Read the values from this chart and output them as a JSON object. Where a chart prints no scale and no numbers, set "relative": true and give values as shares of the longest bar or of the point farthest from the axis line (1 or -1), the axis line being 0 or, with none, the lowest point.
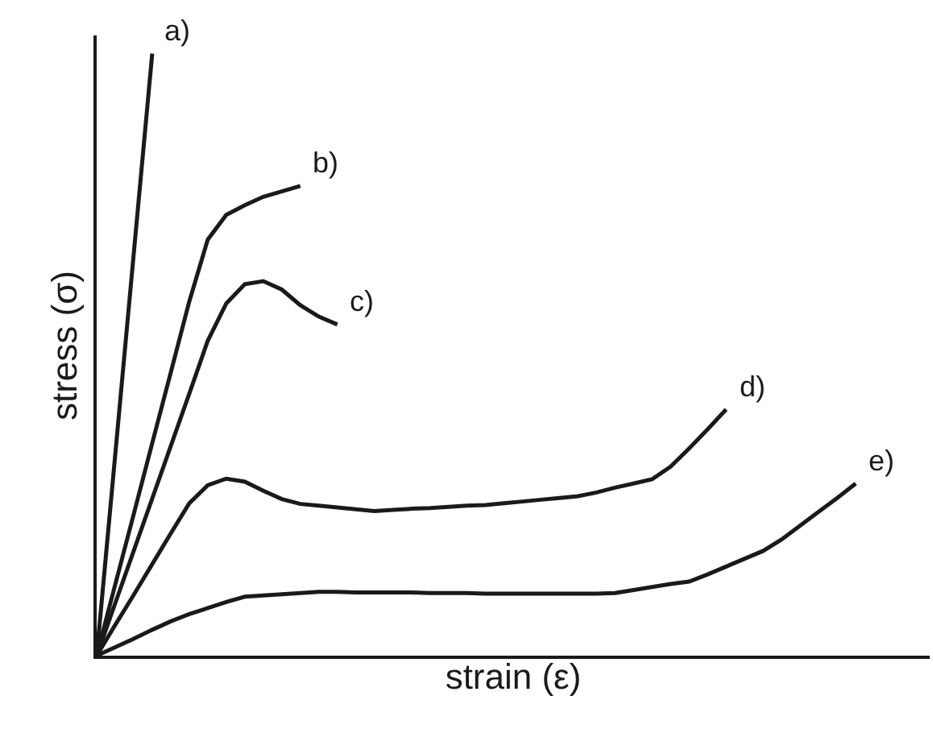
{
  "chart_data": {
    "type": "line",
    "relative": true,
    "xlabel": "strain (ε)",
    "ylabel": "stress (σ)",
    "legend": false,
    "marker": "none",
    "line_style": "solid",
    "tick_labels": false,
    "categories": [
      null,
      null,
      null,
      null,
      null,
      null,
      null,
      null,
      null,
      null,
      null,
      null,
      null,
      null,
      null,
      null,
      null,
      null,
      null,
      null,
      null,
      null,
      null,
      null,
      null,
      null,
      null,
      null,
      null,
      null,
      null,
      null,
      null,
      null,
      null,
      null,
      null,
      null,
      null,
      null,
      null,
      null,
      null,
      null,
      null,
      null
    ],
    "series": [
      {
        "name": "a)",
        "color": "#1a1a1a",
        "values": [
          0,
          0.333,
          0.667,
          1.0,
          null,
          null,
          null,
          null,
          null,
          null,
          null,
          null,
          null,
          null,
          null,
          null,
          null,
          null,
          null,
          null,
          null,
          null,
          null,
          null,
          null,
          null,
          null,
          null,
          null,
          null,
          null,
          null,
          null,
          null,
          null,
          null,
          null,
          null,
          null,
          null,
          null,
          null,
          null,
          null,
          null,
          null
        ]
      },
      {
        "name": "b)",
        "color": "#1a1a1a",
        "values": [
          0,
          0.118,
          0.235,
          0.353,
          0.47,
          0.588,
          0.691,
          0.732,
          0.748,
          0.762,
          0.771,
          0.78,
          null,
          null,
          null,
          null,
          null,
          null,
          null,
          null,
          null,
          null,
          null,
          null,
          null,
          null,
          null,
          null,
          null,
          null,
          null,
          null,
          null,
          null,
          null,
          null,
          null,
          null,
          null,
          null,
          null,
          null,
          null,
          null,
          null,
          null
        ]
      },
      {
        "name": "c)",
        "color": "#1a1a1a",
        "values": [
          0,
          0.087,
          0.174,
          0.261,
          0.348,
          0.435,
          0.523,
          0.585,
          0.617,
          0.622,
          0.608,
          0.582,
          0.563,
          0.55,
          null,
          null,
          null,
          null,
          null,
          null,
          null,
          null,
          null,
          null,
          null,
          null,
          null,
          null,
          null,
          null,
          null,
          null,
          null,
          null,
          null,
          null,
          null,
          null,
          null,
          null,
          null,
          null,
          null,
          null,
          null,
          null
        ]
      },
      {
        "name": "d)",
        "color": "#1a1a1a",
        "values": [
          0,
          0.051,
          0.101,
          0.152,
          0.203,
          0.253,
          0.283,
          0.294,
          0.289,
          0.274,
          0.26,
          0.252,
          0.249,
          0.246,
          0.243,
          0.24,
          0.242,
          0.244,
          0.245,
          0.247,
          0.249,
          0.25,
          0.253,
          0.256,
          0.259,
          0.262,
          0.265,
          0.271,
          0.279,
          0.286,
          0.293,
          0.314,
          0.344,
          0.376,
          0.409,
          null,
          null,
          null,
          null,
          null,
          null,
          null,
          null,
          null,
          null,
          null
        ]
      },
      {
        "name": "e)",
        "color": "#1a1a1a",
        "values": [
          0,
          0.014,
          0.028,
          0.043,
          0.057,
          0.069,
          0.079,
          0.089,
          0.098,
          0.1,
          0.102,
          0.104,
          0.106,
          0.106,
          0.105,
          0.105,
          0.105,
          0.105,
          0.104,
          0.104,
          0.104,
          0.103,
          0.103,
          0.103,
          0.103,
          0.103,
          0.103,
          0.103,
          0.104,
          0.109,
          0.114,
          0.119,
          0.123,
          0.135,
          0.148,
          0.161,
          0.174,
          0.193,
          0.216,
          0.239,
          0.262,
          0.286,
          null,
          null,
          null,
          null
        ]
      }
    ]
  }
}
